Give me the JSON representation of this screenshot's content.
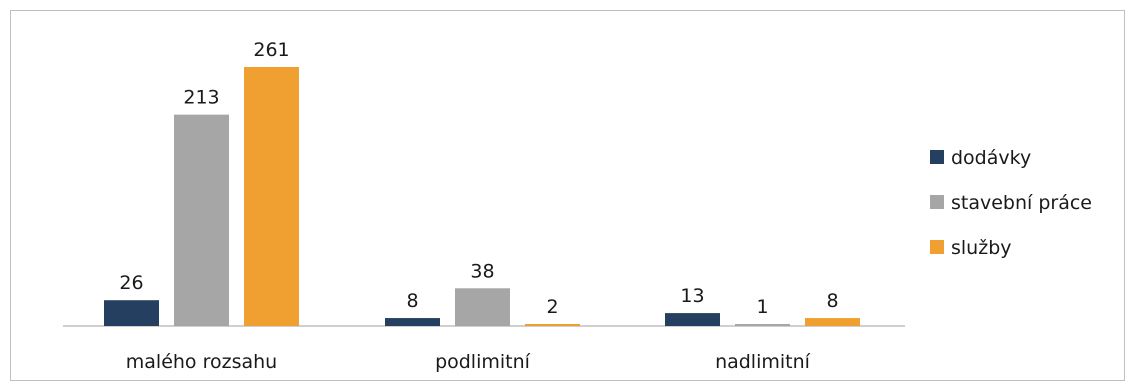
{
  "chart_data": {
    "type": "bar",
    "categories": [
      "malého rozsahu",
      "podlimitní",
      "nadlimitní"
    ],
    "series": [
      {
        "name": "dodávky",
        "values": [
          26,
          8,
          13
        ],
        "color": "#243f60"
      },
      {
        "name": "stavební práce",
        "values": [
          213,
          38,
          1
        ],
        "color": "#a6a6a6"
      },
      {
        "name": "služby",
        "values": [
          261,
          2,
          8
        ],
        "color": "#f0a030"
      }
    ],
    "ylim": [
      0,
      261
    ],
    "legend": "right",
    "grid": false
  }
}
